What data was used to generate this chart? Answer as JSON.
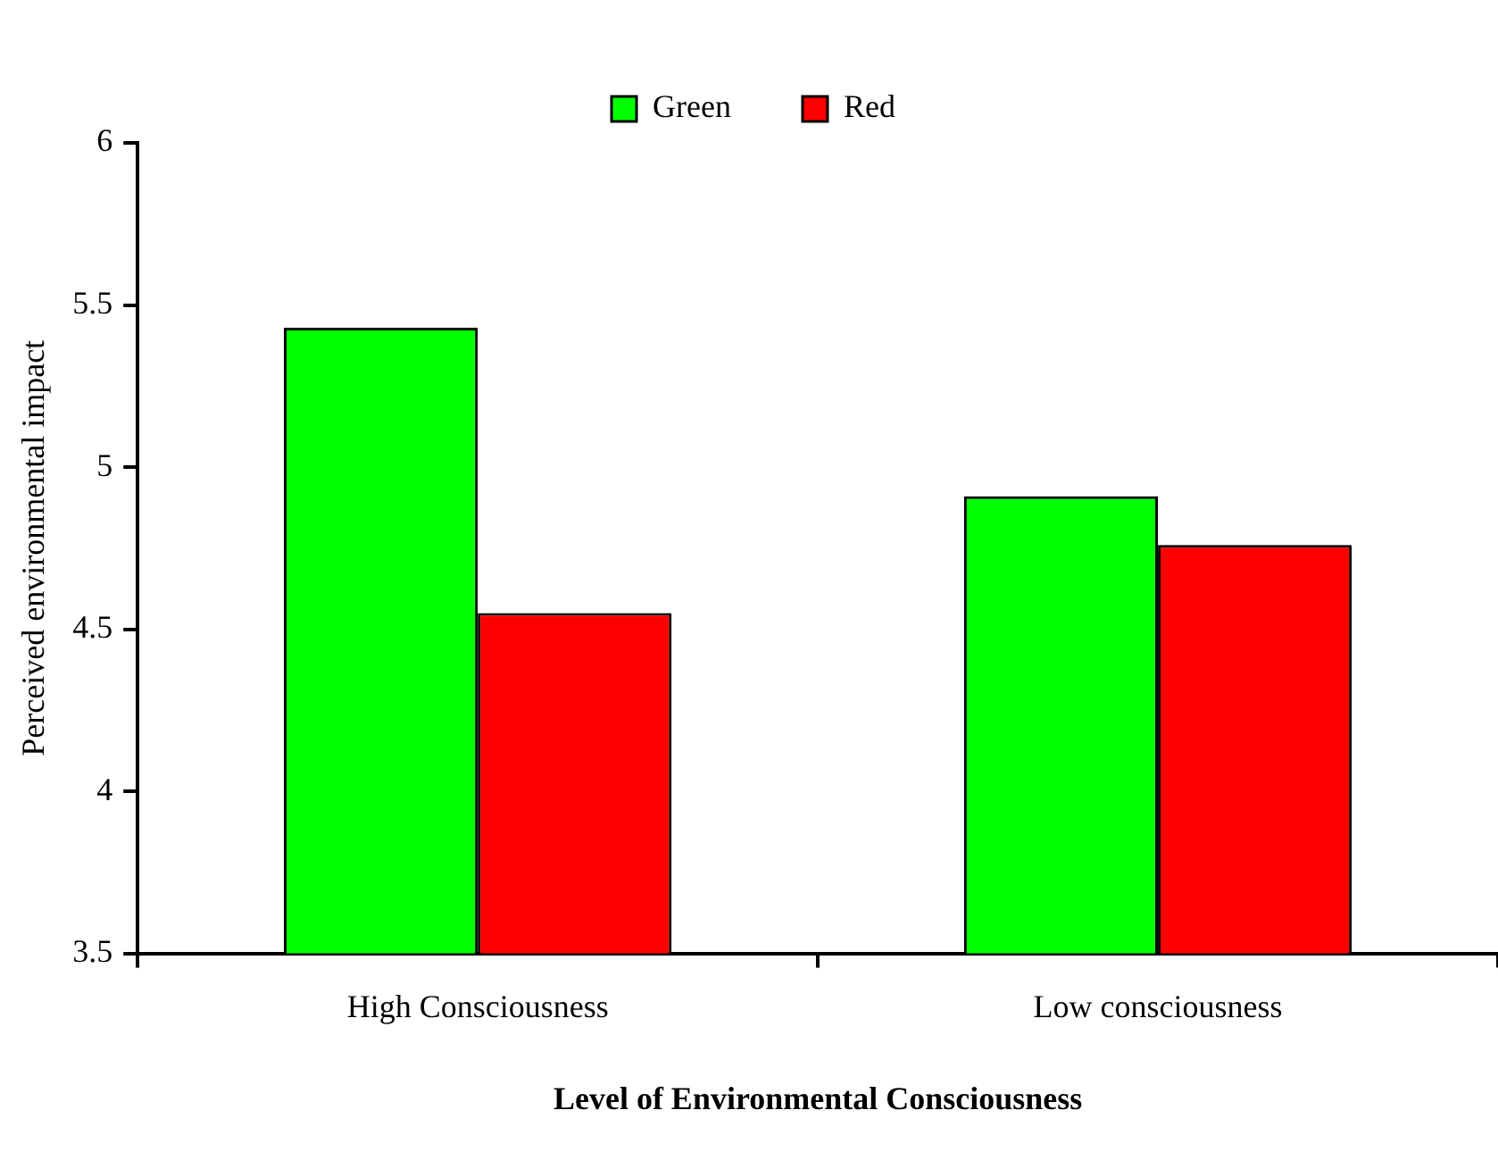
{
  "chart_data": {
    "type": "bar",
    "xlabel": "Level of Environmental Consciousness",
    "ylabel": "Perceived environmental impact",
    "categories": [
      "High Consciousness",
      "Low consciousness"
    ],
    "series": [
      {
        "name": "Green",
        "color": "#00ff00",
        "values": [
          5.43,
          4.91
        ]
      },
      {
        "name": "Red",
        "color": "#ff0000",
        "values": [
          4.55,
          4.76
        ]
      }
    ],
    "ylim": [
      3.5,
      6
    ],
    "yticks": [
      3.5,
      4,
      4.5,
      5,
      5.5,
      6
    ],
    "grid": false,
    "legend": "top"
  }
}
